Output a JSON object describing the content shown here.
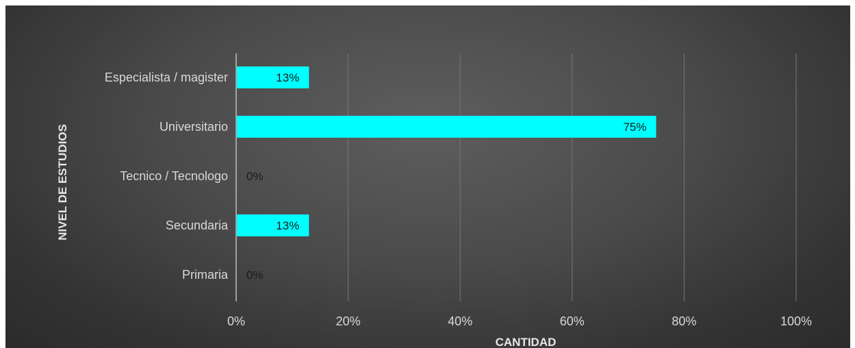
{
  "chart_data": {
    "type": "bar",
    "orientation": "horizontal",
    "categories": [
      "Primaria",
      "Secundaria",
      "Tecnico / Tecnologo",
      "Universitario",
      "Especialista / magister"
    ],
    "values": [
      0,
      13,
      0,
      75,
      13
    ],
    "data_labels": [
      "0%",
      "13%",
      "0%",
      "75%",
      "13%"
    ],
    "xlabel": "CANTIDAD",
    "ylabel": "NIVEL DE ESTUDIOS",
    "xlim": [
      0,
      100
    ],
    "x_ticks": [
      0,
      20,
      40,
      60,
      80,
      100
    ],
    "x_tick_labels": [
      "0%",
      "20%",
      "40%",
      "60%",
      "80%",
      "100%"
    ],
    "grid": true,
    "legend": "none",
    "colors": {
      "bar": "#00FFFF",
      "background": "#4a4a4a",
      "gridline": "#777777",
      "text": "#d9d9d9"
    }
  }
}
